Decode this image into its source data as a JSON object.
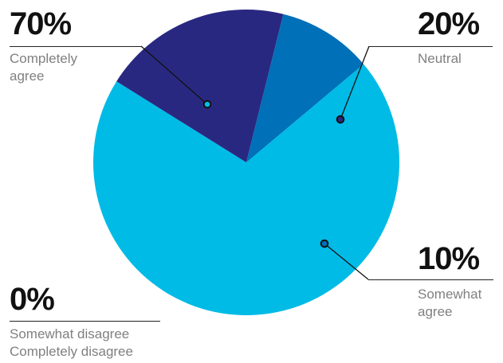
{
  "chart_data": {
    "type": "pie",
    "slices": [
      {
        "label": "Completely agree",
        "value": 70,
        "pct_label": "70%",
        "display_label": "Completely\nagree",
        "color": "#00BBE6"
      },
      {
        "label": "Neutral",
        "value": 20,
        "pct_label": "20%",
        "display_label": "Neutral",
        "color": "#292881"
      },
      {
        "label": "Somewhat agree",
        "value": 10,
        "pct_label": "10%",
        "display_label": "Somewhat\nagree",
        "color": "#0070B8"
      },
      {
        "label": "Somewhat disagree / Completely disagree",
        "value": 0,
        "pct_label": "0%",
        "display_label": "Somewhat disagree\nCompletely disagree",
        "color": "#000000"
      }
    ]
  }
}
